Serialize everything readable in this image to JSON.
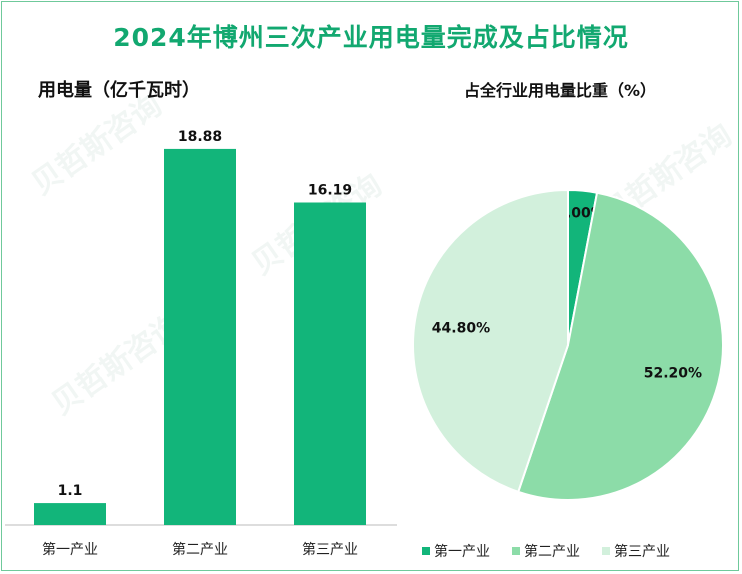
{
  "title": "2024年博州三次产业用电量完成及占比情况",
  "watermark": "贝哲斯咨询",
  "colors": {
    "accent": "#12a870",
    "title": "#12a870"
  },
  "chart_data": [
    {
      "type": "bar",
      "title": "",
      "ylabel": "用电量（亿千瓦时）",
      "categories": [
        "第一产业",
        "第二产业",
        "第三产业"
      ],
      "values": [
        1.1,
        18.88,
        16.19
      ],
      "value_labels": [
        "1.1",
        "18.88",
        "16.19"
      ],
      "ylim": [
        0,
        20
      ],
      "color": "#12b57a",
      "grid": false
    },
    {
      "type": "pie",
      "title": "占全行业用电量比重（%）",
      "categories": [
        "第一产业",
        "第二产业",
        "第三产业"
      ],
      "values": [
        3.0,
        52.2,
        44.8
      ],
      "value_labels": [
        "3.00%",
        "52.20%",
        "44.80%"
      ],
      "colors": [
        "#12b57a",
        "#8cdca8",
        "#d2f0dc"
      ],
      "legend": "bottom"
    }
  ]
}
